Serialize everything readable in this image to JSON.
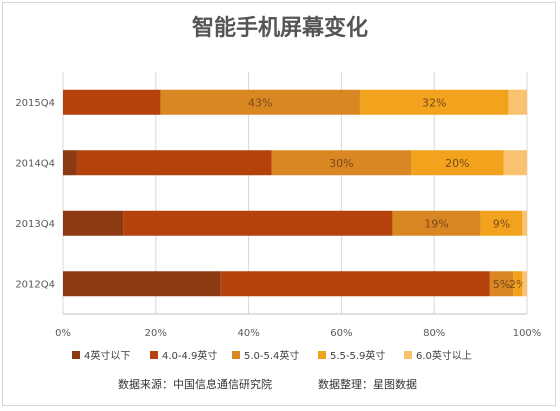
{
  "chart_data": {
    "type": "bar",
    "orientation": "horizontal",
    "stacked": true,
    "percent_stacked": true,
    "title": "智能手机屏幕变化",
    "categories": [
      "2012Q4",
      "2013Q4",
      "2014Q4",
      "2015Q4"
    ],
    "series": [
      {
        "name": "4英寸以下",
        "color": "#8B3A12",
        "values": [
          34,
          13,
          3,
          0
        ]
      },
      {
        "name": "4.0-4.9英寸",
        "color": "#B5410C",
        "values": [
          58,
          58,
          42,
          21
        ]
      },
      {
        "name": "5.0-5.4英寸",
        "color": "#D98722",
        "values": [
          5,
          19,
          30,
          43
        ]
      },
      {
        "name": "5.5-5.9英寸",
        "color": "#F2A21C",
        "values": [
          2,
          9,
          20,
          32
        ]
      },
      {
        "name": "6.0英寸以上",
        "color": "#F8C26E",
        "values": [
          1,
          1,
          5,
          4
        ]
      }
    ],
    "data_labels": [
      {
        "category": "2015Q4",
        "series": "5.0-5.4英寸",
        "text": "43%"
      },
      {
        "category": "2015Q4",
        "series": "5.5-5.9英寸",
        "text": "32%"
      },
      {
        "category": "2014Q4",
        "series": "5.0-5.4英寸",
        "text": "30%"
      },
      {
        "category": "2014Q4",
        "series": "5.5-5.9英寸",
        "text": "20%"
      },
      {
        "category": "2013Q4",
        "series": "5.0-5.4英寸",
        "text": "19%"
      },
      {
        "category": "2013Q4",
        "series": "5.5-5.9英寸",
        "text": "9%"
      },
      {
        "category": "2012Q4",
        "series": "5.0-5.4英寸",
        "text": "5%"
      },
      {
        "category": "2012Q4",
        "series": "5.5-5.9英寸",
        "text": "2%"
      }
    ],
    "xlim": [
      0,
      100
    ],
    "xticks": [
      "0%",
      "20%",
      "40%",
      "60%",
      "80%",
      "100%"
    ],
    "grid": true,
    "legend_position": "bottom"
  },
  "footer": {
    "source": "数据来源：中国信息通信研究院",
    "credit": "数据整理：星图数据"
  }
}
